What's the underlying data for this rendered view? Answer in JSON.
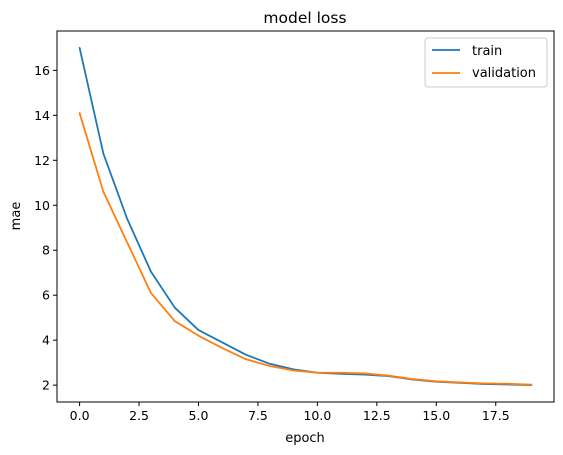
{
  "chart_data": {
    "type": "line",
    "title": "model loss",
    "xlabel": "epoch",
    "ylabel": "mae",
    "xlim": [
      -0.95,
      19.95
    ],
    "ylim": [
      1.25,
      17.75
    ],
    "xticks": [
      0.0,
      2.5,
      5.0,
      7.5,
      10.0,
      12.5,
      15.0,
      17.5
    ],
    "xtick_labels": [
      "0.0",
      "2.5",
      "5.0",
      "7.5",
      "10.0",
      "12.5",
      "15.0",
      "17.5"
    ],
    "yticks": [
      2,
      4,
      6,
      8,
      10,
      12,
      14,
      16
    ],
    "ytick_labels": [
      "2",
      "4",
      "6",
      "8",
      "10",
      "12",
      "14",
      "16"
    ],
    "grid": false,
    "legend_position": "top-right",
    "x": [
      0,
      1,
      2,
      3,
      4,
      5,
      6,
      7,
      8,
      9,
      10,
      11,
      12,
      13,
      14,
      15,
      16,
      17,
      18,
      19
    ],
    "series": [
      {
        "name": "train",
        "color": "#1f77b4",
        "values": [
          17.0,
          12.3,
          9.4,
          7.05,
          5.45,
          4.45,
          3.9,
          3.35,
          2.95,
          2.7,
          2.55,
          2.5,
          2.47,
          2.4,
          2.25,
          2.15,
          2.1,
          2.05,
          2.03,
          2.0
        ]
      },
      {
        "name": "validation",
        "color": "#ff7f0e",
        "values": [
          14.1,
          10.6,
          8.35,
          6.1,
          4.85,
          4.2,
          3.65,
          3.15,
          2.85,
          2.65,
          2.55,
          2.55,
          2.52,
          2.42,
          2.27,
          2.17,
          2.12,
          2.08,
          2.06,
          2.02
        ]
      }
    ]
  }
}
